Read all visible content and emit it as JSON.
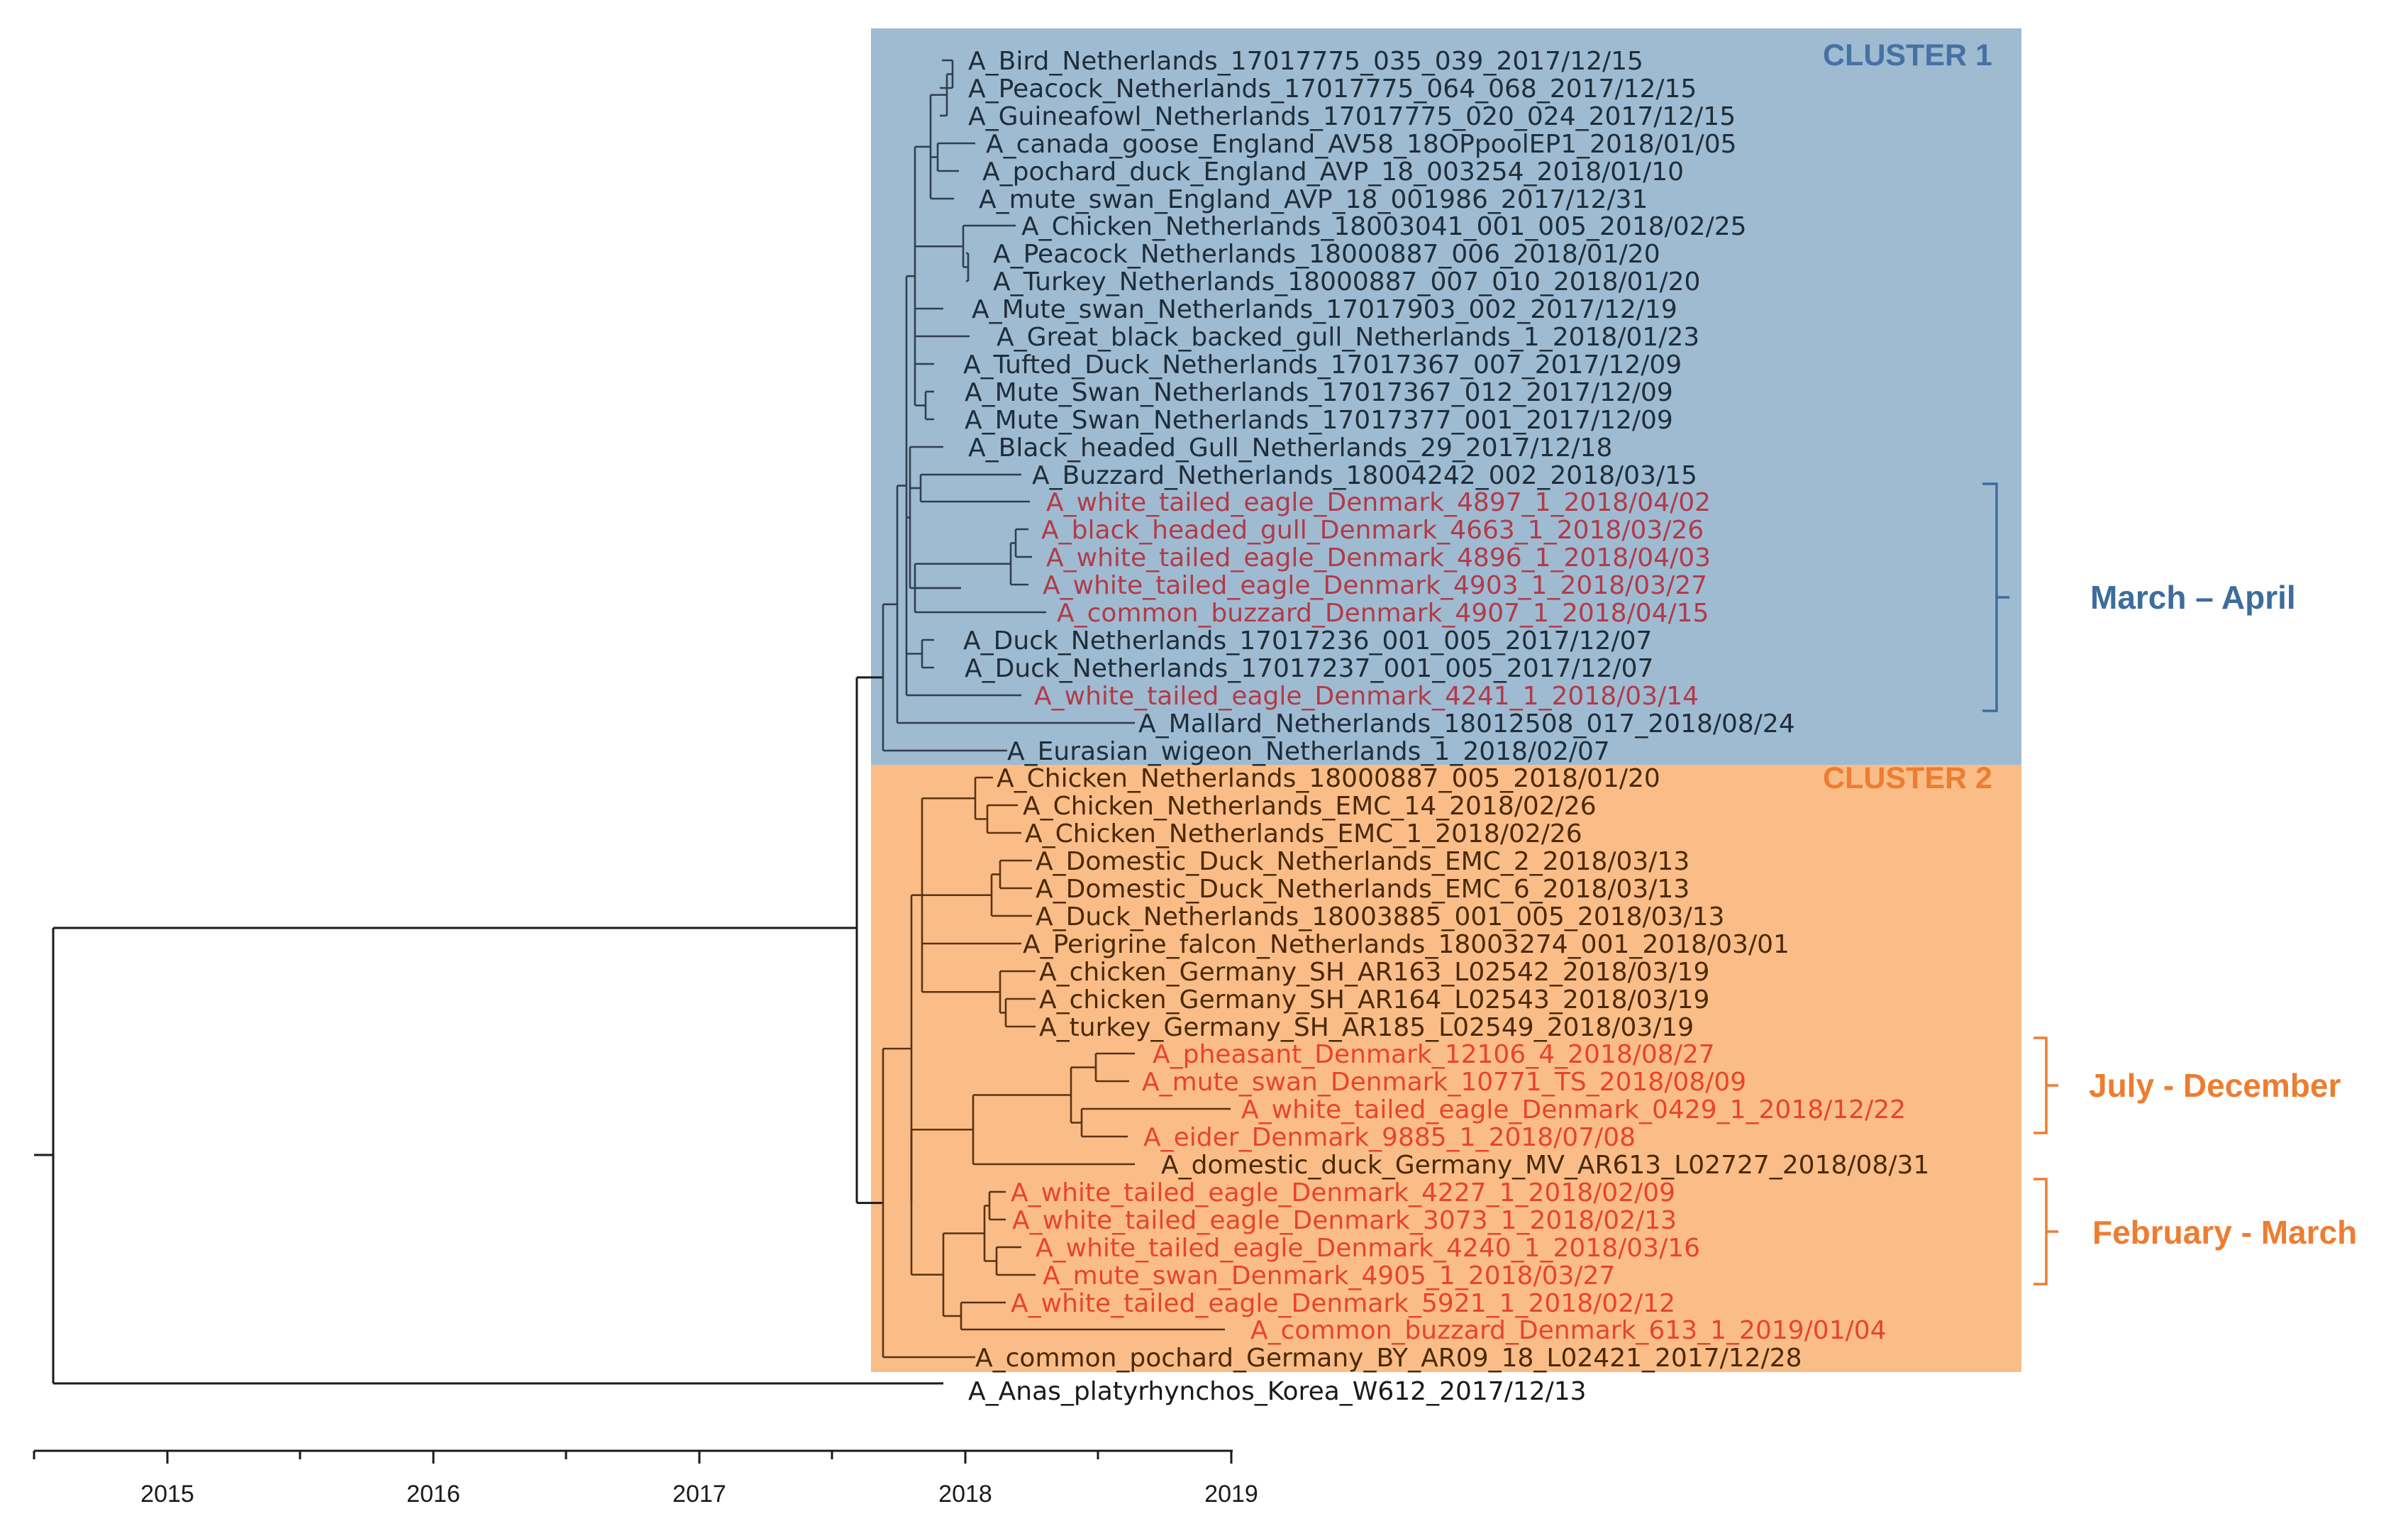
{
  "colors": {
    "cluster1_bg": "#9fbbd1",
    "cluster2_bg": "#fabd88",
    "cluster1_title": "#4472a4",
    "cluster2_title": "#ed7d31",
    "branch_c1": "#2f3f4f",
    "branch_c2": "#5a3310",
    "branch_root": "#1a1a1a",
    "denmark_c1": "#b23a48",
    "denmark_c2": "#e8442a",
    "text_c1": "#1f2d3a",
    "text_c2": "#4a2a08",
    "bracket_c1": "#3e6c9c",
    "bracket_c2": "#ed7d31"
  },
  "clusters": [
    {
      "title": "CLUSTER 1"
    },
    {
      "title": "CLUSTER 2"
    }
  ],
  "annotations": [
    {
      "label": "March – April"
    },
    {
      "label": "July - December"
    },
    {
      "label": "February - March"
    }
  ],
  "axis": {
    "ticks": [
      "2015",
      "2016",
      "2017",
      "2018",
      "2019"
    ]
  },
  "leaves": [
    {
      "label": "A_Bird_Netherlands_17017775_035_039_2017/12/15",
      "cluster": 1,
      "denmark": false
    },
    {
      "label": "A_Peacock_Netherlands_17017775_064_068_2017/12/15",
      "cluster": 1,
      "denmark": false
    },
    {
      "label": "A_Guineafowl_Netherlands_17017775_020_024_2017/12/15",
      "cluster": 1,
      "denmark": false
    },
    {
      "label": "A_canada_goose_England_AV58_18OPpoolEP1_2018/01/05",
      "cluster": 1,
      "denmark": false
    },
    {
      "label": "A_pochard_duck_England_AVP_18_003254_2018/01/10",
      "cluster": 1,
      "denmark": false
    },
    {
      "label": "A_mute_swan_England_AVP_18_001986_2017/12/31",
      "cluster": 1,
      "denmark": false
    },
    {
      "label": "A_Chicken_Netherlands_18003041_001_005_2018/02/25",
      "cluster": 1,
      "denmark": false
    },
    {
      "label": "A_Peacock_Netherlands_18000887_006_2018/01/20",
      "cluster": 1,
      "denmark": false
    },
    {
      "label": "A_Turkey_Netherlands_18000887_007_010_2018/01/20",
      "cluster": 1,
      "denmark": false
    },
    {
      "label": "A_Mute_swan_Netherlands_17017903_002_2017/12/19",
      "cluster": 1,
      "denmark": false
    },
    {
      "label": "A_Great_black_backed_gull_Netherlands_1_2018/01/23",
      "cluster": 1,
      "denmark": false
    },
    {
      "label": "A_Tufted_Duck_Netherlands_17017367_007_2017/12/09",
      "cluster": 1,
      "denmark": false
    },
    {
      "label": "A_Mute_Swan_Netherlands_17017367_012_2017/12/09",
      "cluster": 1,
      "denmark": false
    },
    {
      "label": "A_Mute_Swan_Netherlands_17017377_001_2017/12/09",
      "cluster": 1,
      "denmark": false
    },
    {
      "label": "A_Black_headed_Gull_Netherlands_29_2017/12/18",
      "cluster": 1,
      "denmark": false
    },
    {
      "label": "A_Buzzard_Netherlands_18004242_002_2018/03/15",
      "cluster": 1,
      "denmark": false
    },
    {
      "label": "A_white_tailed_eagle_Denmark_4897_1_2018/04/02",
      "cluster": 1,
      "denmark": true
    },
    {
      "label": "A_black_headed_gull_Denmark_4663_1_2018/03/26",
      "cluster": 1,
      "denmark": true
    },
    {
      "label": "A_white_tailed_eagle_Denmark_4896_1_2018/04/03",
      "cluster": 1,
      "denmark": true
    },
    {
      "label": "A_white_tailed_eagle_Denmark_4903_1_2018/03/27",
      "cluster": 1,
      "denmark": true
    },
    {
      "label": "A_common_buzzard_Denmark_4907_1_2018/04/15",
      "cluster": 1,
      "denmark": true
    },
    {
      "label": "A_Duck_Netherlands_17017236_001_005_2017/12/07",
      "cluster": 1,
      "denmark": false
    },
    {
      "label": "A_Duck_Netherlands_17017237_001_005_2017/12/07",
      "cluster": 1,
      "denmark": false
    },
    {
      "label": "A_white_tailed_eagle_Denmark_4241_1_2018/03/14",
      "cluster": 1,
      "denmark": true
    },
    {
      "label": "A_Mallard_Netherlands_18012508_017_2018/08/24",
      "cluster": 1,
      "denmark": false
    },
    {
      "label": "A_Eurasian_wigeon_Netherlands_1_2018/02/07",
      "cluster": 1,
      "denmark": false
    },
    {
      "label": "A_Chicken_Netherlands_18000887_005_2018/01/20",
      "cluster": 2,
      "denmark": false
    },
    {
      "label": "A_Chicken_Netherlands_EMC_14_2018/02/26",
      "cluster": 2,
      "denmark": false
    },
    {
      "label": "A_Chicken_Netherlands_EMC_1_2018/02/26",
      "cluster": 2,
      "denmark": false
    },
    {
      "label": "A_Domestic_Duck_Netherlands_EMC_2_2018/03/13",
      "cluster": 2,
      "denmark": false
    },
    {
      "label": "A_Domestic_Duck_Netherlands_EMC_6_2018/03/13",
      "cluster": 2,
      "denmark": false
    },
    {
      "label": "A_Duck_Netherlands_18003885_001_005_2018/03/13",
      "cluster": 2,
      "denmark": false
    },
    {
      "label": "A_Perigrine_falcon_Netherlands_18003274_001_2018/03/01",
      "cluster": 2,
      "denmark": false
    },
    {
      "label": "A_chicken_Germany_SH_AR163_L02542_2018/03/19",
      "cluster": 2,
      "denmark": false
    },
    {
      "label": "A_chicken_Germany_SH_AR164_L02543_2018/03/19",
      "cluster": 2,
      "denmark": false
    },
    {
      "label": "A_turkey_Germany_SH_AR185_L02549_2018/03/19",
      "cluster": 2,
      "denmark": false
    },
    {
      "label": "A_pheasant_Denmark_12106_4_2018/08/27",
      "cluster": 2,
      "denmark": true
    },
    {
      "label": "A_mute_swan_Denmark_10771_TS_2018/08/09",
      "cluster": 2,
      "denmark": true
    },
    {
      "label": "A_white_tailed_eagle_Denmark_0429_1_2018/12/22",
      "cluster": 2,
      "denmark": true
    },
    {
      "label": "A_eider_Denmark_9885_1_2018/07/08",
      "cluster": 2,
      "denmark": true
    },
    {
      "label": "A_domestic_duck_Germany_MV_AR613_L02727_2018/08/31",
      "cluster": 2,
      "denmark": false
    },
    {
      "label": "A_white_tailed_eagle_Denmark_4227_1_2018/02/09",
      "cluster": 2,
      "denmark": true
    },
    {
      "label": "A_white_tailed_eagle_Denmark_3073_1_2018/02/13",
      "cluster": 2,
      "denmark": true
    },
    {
      "label": "A_white_tailed_eagle_Denmark_4240_1_2018/03/16",
      "cluster": 2,
      "denmark": true
    },
    {
      "label": "A_mute_swan_Denmark_4905_1_2018/03/27",
      "cluster": 2,
      "denmark": true
    },
    {
      "label": "A_white_tailed_eagle_Denmark_5921_1_2018/02/12",
      "cluster": 2,
      "denmark": true
    },
    {
      "label": "A_common_buzzard_Denmark_613_1_2019/01/04",
      "cluster": 2,
      "denmark": true
    },
    {
      "label": "A_common_pochard_Germany_BY_AR09_18_L02421_2017/12/28",
      "cluster": 2,
      "denmark": false
    },
    {
      "label": "A_Anas_platyrhynchos_Korea_W612_2017/12/13",
      "cluster": 0,
      "denmark": false
    }
  ]
}
